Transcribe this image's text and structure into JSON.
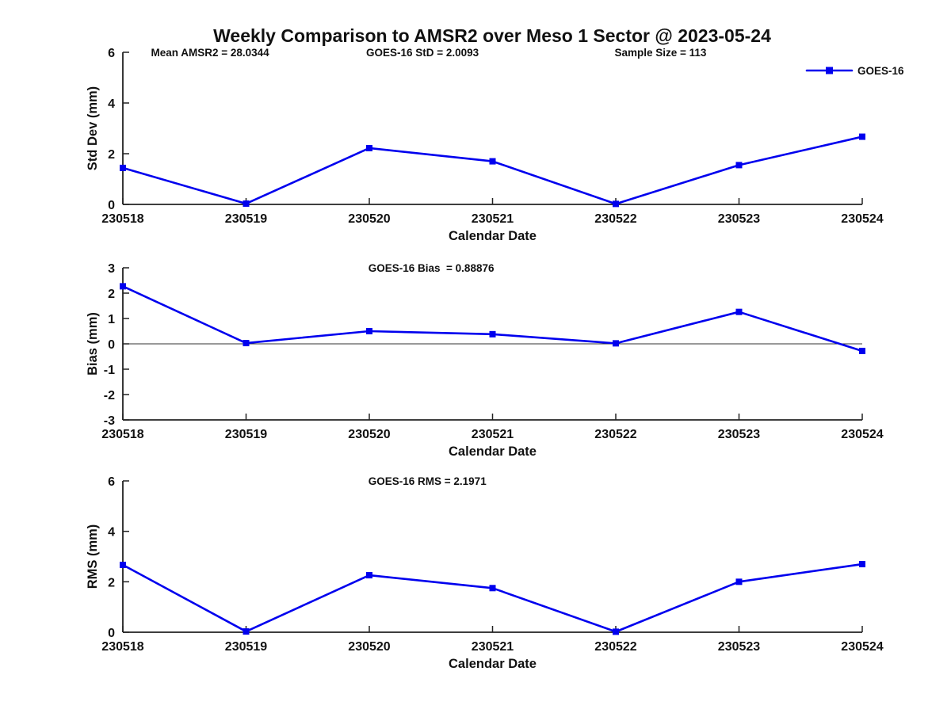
{
  "title": "Weekly Comparison to AMSR2 over Meso 1 Sector @ 2023-05-24",
  "series_color": "#0000EE",
  "chart_data": [
    {
      "type": "line",
      "name": "std-dev",
      "annotations": [
        {
          "text": "Mean AMSR2 = 28.0344",
          "xfrac": 0.038
        },
        {
          "text": "GOES-16 StD = 2.0093",
          "xfrac": 0.329
        },
        {
          "text": "Sample Size = 113",
          "xfrac": 0.665
        }
      ],
      "categories": [
        "230518",
        "230519",
        "230520",
        "230521",
        "230522",
        "230523",
        "230524"
      ],
      "series": [
        {
          "name": "GOES-16",
          "color": "#0000EE",
          "values": [
            1.44,
            0.03,
            2.22,
            1.7,
            0.02,
            1.55,
            2.67
          ]
        }
      ],
      "xlabel": "Calendar Date",
      "ylabel": "Std Dev (mm)",
      "ylim": [
        0,
        6
      ],
      "yticks": [
        0,
        2,
        4,
        6
      ],
      "legend": {
        "label": "GOES-16",
        "position": "top-right"
      },
      "zero_line": false,
      "grid": false
    },
    {
      "type": "line",
      "name": "bias",
      "annotations": [
        {
          "text": "GOES-16 Bias  = 0.88876",
          "xfrac": 0.332
        }
      ],
      "categories": [
        "230518",
        "230519",
        "230520",
        "230521",
        "230522",
        "230523",
        "230524"
      ],
      "series": [
        {
          "name": "GOES-16",
          "color": "#0000EE",
          "values": [
            2.27,
            0.03,
            0.5,
            0.38,
            0.02,
            1.26,
            -0.28
          ]
        }
      ],
      "xlabel": "Calendar Date",
      "ylabel": "Bias (mm)",
      "ylim": [
        -3,
        3
      ],
      "yticks": [
        -3,
        -2,
        -1,
        0,
        1,
        2,
        3
      ],
      "legend": null,
      "zero_line": true,
      "grid": false
    },
    {
      "type": "line",
      "name": "rms",
      "annotations": [
        {
          "text": "GOES-16 RMS = 2.1971",
          "xfrac": 0.332
        }
      ],
      "categories": [
        "230518",
        "230519",
        "230520",
        "230521",
        "230522",
        "230523",
        "230524"
      ],
      "series": [
        {
          "name": "GOES-16",
          "color": "#0000EE",
          "values": [
            2.67,
            0.03,
            2.26,
            1.75,
            0.02,
            2.0,
            2.7
          ]
        }
      ],
      "xlabel": "Calendar Date",
      "ylabel": "RMS (mm)",
      "ylim": [
        0,
        6
      ],
      "yticks": [
        0,
        2,
        4,
        6
      ],
      "legend": null,
      "zero_line": false,
      "grid": false
    }
  ]
}
